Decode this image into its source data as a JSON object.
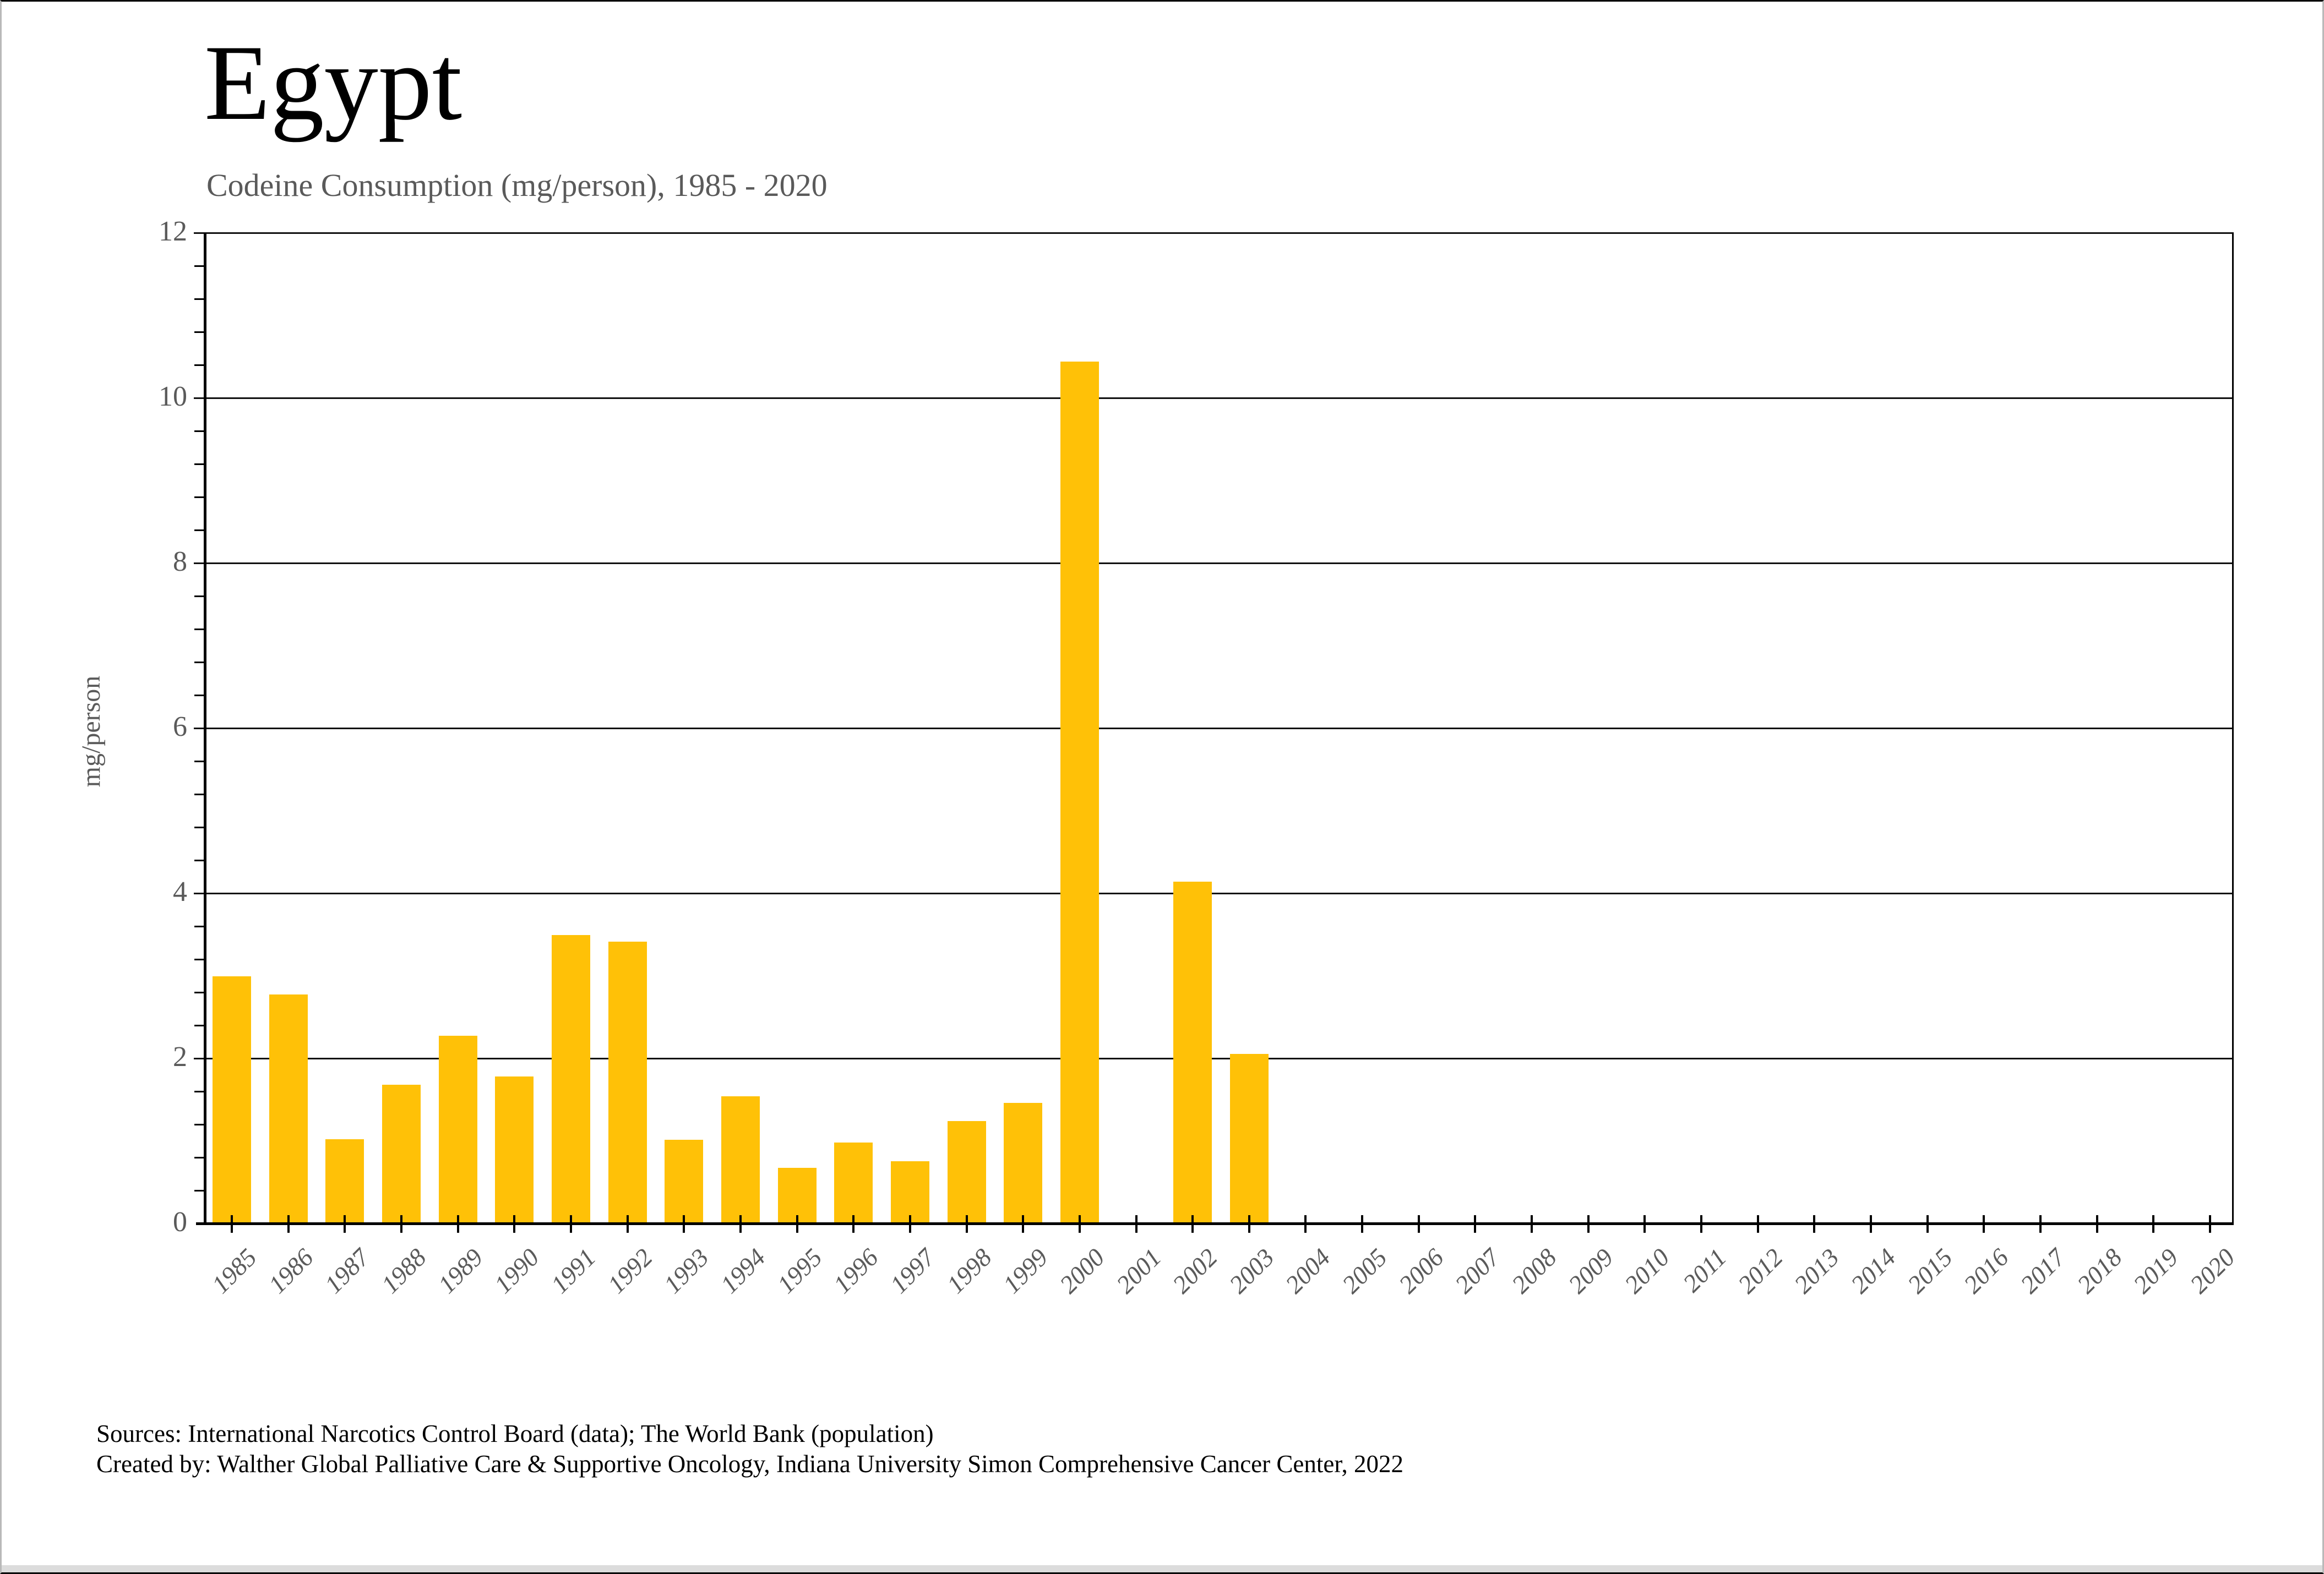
{
  "header": {
    "title": "Egypt",
    "subtitle": "Codeine Consumption (mg/person), 1985 - 2020"
  },
  "footer": {
    "line1": "Sources: International Narcotics Control Board (data); The World Bank (population)",
    "line2": "Created by: Walther Global Palliative Care & Supportive Oncology, Indiana University Simon Comprehensive Cancer Center, 2022"
  },
  "chart_data": {
    "type": "bar",
    "title": "Egypt",
    "subtitle": "Codeine Consumption (mg/person), 1985 - 2020",
    "xlabel": "",
    "ylabel": "mg/person",
    "ylim": [
      0,
      12
    ],
    "ytick_interval": 2,
    "y_minor_tick_interval": 0.4,
    "grid": "horizontal major gridlines",
    "legend": "none",
    "bar_color": "#FFC107",
    "axis_text_color": "#5A5A5A",
    "categories": [
      "1985",
      "1986",
      "1987",
      "1988",
      "1989",
      "1990",
      "1991",
      "1992",
      "1993",
      "1994",
      "1995",
      "1996",
      "1997",
      "1998",
      "1999",
      "2000",
      "2001",
      "2002",
      "2003",
      "2004",
      "2005",
      "2006",
      "2007",
      "2008",
      "2009",
      "2010",
      "2011",
      "2012",
      "2013",
      "2014",
      "2015",
      "2016",
      "2017",
      "2018",
      "2019",
      "2020"
    ],
    "values": [
      3.0,
      2.78,
      1.03,
      1.69,
      2.28,
      1.79,
      3.5,
      3.42,
      1.02,
      1.55,
      0.68,
      0.99,
      0.76,
      1.25,
      1.47,
      10.45,
      0,
      4.15,
      2.06,
      0,
      0,
      0,
      0,
      0,
      0,
      0,
      0,
      0,
      0,
      0,
      0,
      0,
      0,
      0,
      0,
      0
    ]
  }
}
